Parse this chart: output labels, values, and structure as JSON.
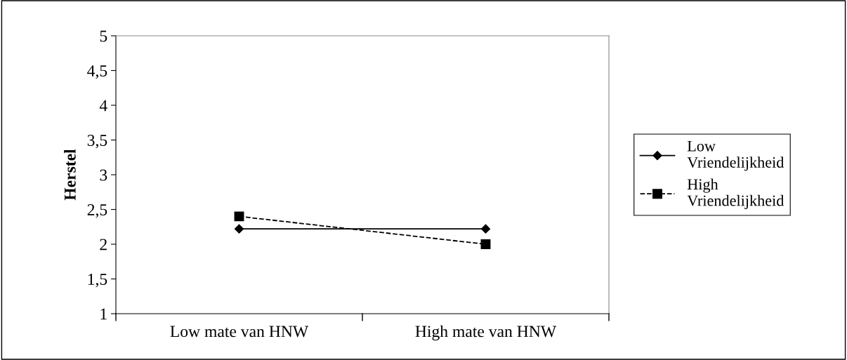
{
  "chart_data": {
    "type": "line",
    "ylabel": "Herstel",
    "categories": [
      "Low mate van HNW",
      "High mate van HNW"
    ],
    "series": [
      {
        "name": "Low Vriendelijkheid",
        "color": "#000000",
        "values": [
          2.22,
          2.22
        ],
        "marker": "diamond",
        "line_style": "solid"
      },
      {
        "name": "High Vriendelijkheid",
        "color": "#000000",
        "values": [
          2.4,
          2.0
        ],
        "marker": "square",
        "line_style": "dashed"
      }
    ],
    "ylim": [
      1,
      5
    ],
    "yticks": [
      1,
      {
        "value": 1.5,
        "label": "1,5"
      },
      2,
      {
        "value": 2.5,
        "label": "2,5"
      },
      3,
      {
        "value": 3.5,
        "label": "3,5"
      },
      4,
      {
        "value": 4.5,
        "label": "4,5"
      },
      5
    ],
    "grid": false,
    "legend": "right"
  }
}
